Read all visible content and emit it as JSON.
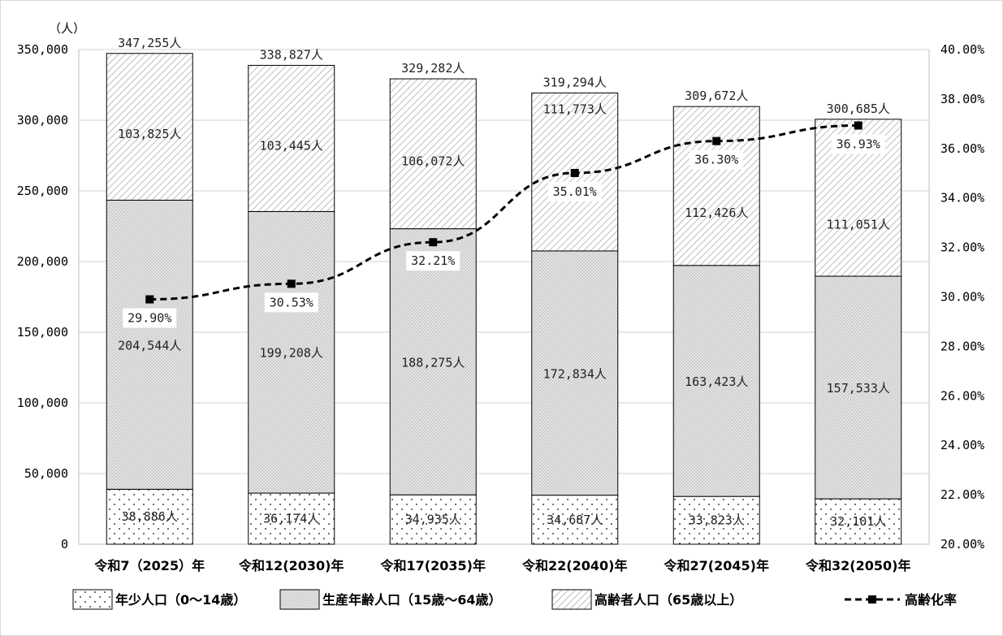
{
  "chart_data": {
    "type": "bar",
    "stacked": true,
    "y_unit_label": "（人）",
    "categories": [
      "令和7（2025）年",
      "令和12(2030)年",
      "令和17(2035)年",
      "令和22(2040)年",
      "令和27(2045)年",
      "令和32(2050)年"
    ],
    "series": [
      {
        "name": "年少人口（0～14歳）",
        "values": [
          38886,
          36174,
          34935,
          34687,
          33823,
          32101
        ],
        "labels": [
          "38,886人",
          "36,174人",
          "34,935人",
          "34,687人",
          "33,823人",
          "32,101人"
        ],
        "pattern": "dots"
      },
      {
        "name": "生産年齢人口（15歳～64歳）",
        "values": [
          204544,
          199208,
          188275,
          172834,
          163423,
          157533
        ],
        "labels": [
          "204,544人",
          "199,208人",
          "188,275人",
          "172,834人",
          "163,423人",
          "157,533人"
        ],
        "pattern": "grid"
      },
      {
        "name": "高齢者人口（65歳以上）",
        "values": [
          103825,
          103445,
          106072,
          111773,
          112426,
          111051
        ],
        "labels": [
          "103,825人",
          "103,445人",
          "106,072人",
          "111,773人",
          "112,426人",
          "111,051人"
        ],
        "pattern": "diagonal"
      }
    ],
    "totals": [
      347255,
      338827,
      329282,
      319294,
      309672,
      300685
    ],
    "total_labels": [
      "347,255人",
      "338,827人",
      "329,282人",
      "319,294人",
      "309,672人",
      "300,685人"
    ],
    "line": {
      "name": "高齢化率",
      "axis": "right",
      "values": [
        29.9,
        30.53,
        32.21,
        35.01,
        36.3,
        36.93
      ],
      "labels": [
        "29.90%",
        "30.53%",
        "32.21%",
        "35.01%",
        "36.30%",
        "36.93%"
      ],
      "style": "dashed",
      "marker": "square"
    },
    "y_left": {
      "min": 0,
      "max": 350000,
      "step": 50000,
      "ticks": [
        "0",
        "50,000",
        "100,000",
        "150,000",
        "200,000",
        "250,000",
        "300,000",
        "350,000"
      ]
    },
    "y_right": {
      "min": 20,
      "max": 40,
      "step": 2,
      "ticks": [
        "20.00%",
        "22.00%",
        "24.00%",
        "26.00%",
        "28.00%",
        "30.00%",
        "32.00%",
        "34.00%",
        "36.00%",
        "38.00%",
        "40.00%"
      ]
    },
    "grid": true,
    "legend_position": "bottom",
    "colors": {
      "bar_fill": "#d9d9d9",
      "bar_border": "#000000",
      "line": "#000000",
      "grid": "#d0d0d0"
    }
  }
}
